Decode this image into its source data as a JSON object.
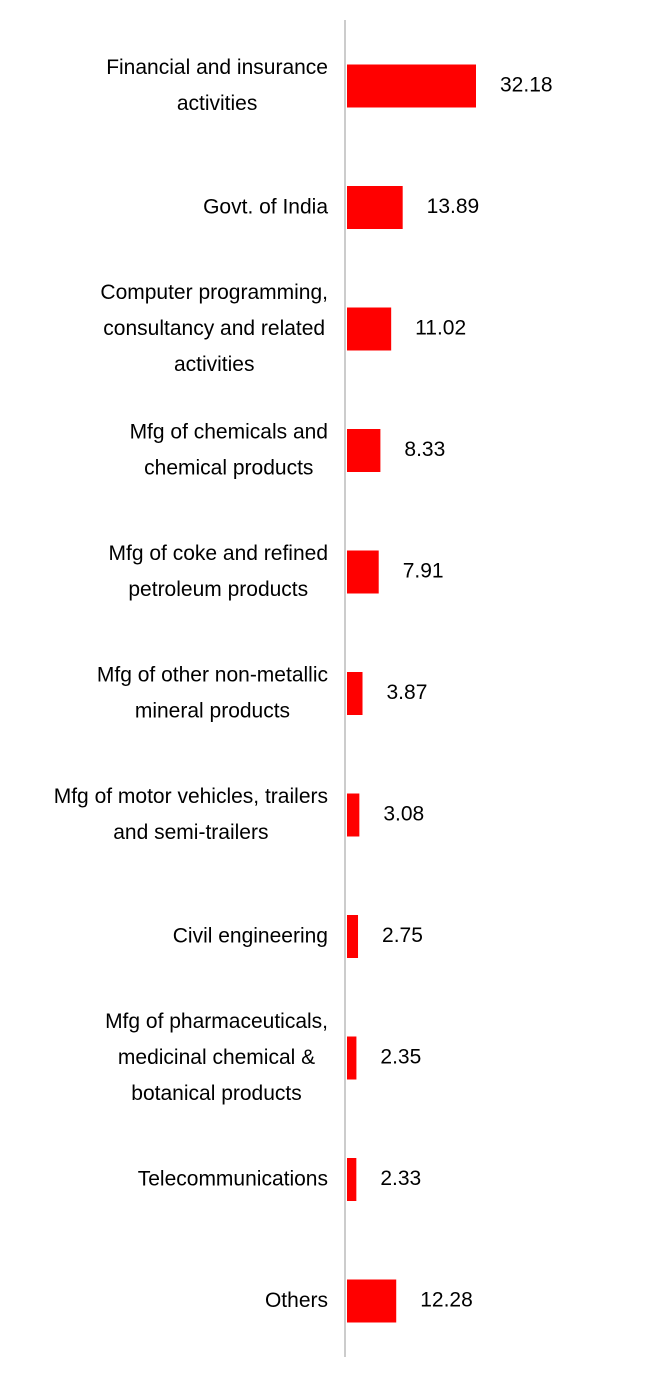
{
  "chart_data": {
    "type": "bar",
    "orientation": "horizontal",
    "color": "#ff0000",
    "categories": [
      "Financial and insurance activities",
      "Govt. of India",
      "Computer programming, consultancy and related activities",
      "Mfg of chemicals and chemical products",
      "Mfg of coke and refined petroleum products",
      "Mfg of other non-metallic mineral products",
      "Mfg of motor vehicles, trailers and semi-trailers",
      "Civil engineering",
      "Mfg of pharmaceuticals, medicinal chemical & botanical products",
      "Telecommunications",
      "Others"
    ],
    "values": [
      32.18,
      13.89,
      11.02,
      8.33,
      7.91,
      3.87,
      3.08,
      2.75,
      2.35,
      2.33,
      12.28
    ]
  }
}
